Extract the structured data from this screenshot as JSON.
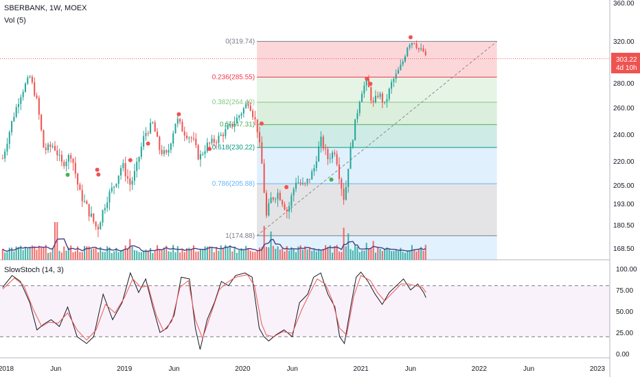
{
  "header": {
    "symbol_line": "SBERBANK, 1W, MOEX",
    "volume_label": "Vol (5)",
    "stoch_label": "SlowStoch (14, 3)"
  },
  "price_badge": {
    "price": "303.22",
    "countdown": "4d 10h"
  },
  "colors": {
    "up": "#26a69a",
    "down": "#ef5350",
    "ma": "#4a3a8a",
    "stoch_k": "#131722",
    "stoch_d": "#ef5350",
    "fib_line": "#8a8a8a"
  },
  "chart_data": [
    {
      "type": "candlestick",
      "title": "SBERBANK, 1W, MOEX",
      "price_axis_labels": [
        "360.00",
        "320.00",
        "280.00",
        "260.00",
        "240.00",
        "220.00",
        "205.00",
        "193.00",
        "180.50",
        "168.50"
      ],
      "price_axis_values": [
        360,
        320,
        280,
        260,
        240,
        220,
        205,
        193,
        180.5,
        168.5
      ],
      "time_axis_labels": [
        {
          "label": "2018",
          "t": 2018.0
        },
        {
          "label": "Jun",
          "t": 2018.42
        },
        {
          "label": "2019",
          "t": 2019.0
        },
        {
          "label": "Jun",
          "t": 2019.42
        },
        {
          "label": "2020",
          "t": 2020.0
        },
        {
          "label": "Jun",
          "t": 2020.42
        },
        {
          "label": "2021",
          "t": 2021.0
        },
        {
          "label": "Jun",
          "t": 2021.42
        },
        {
          "label": "2022",
          "t": 2022.0
        },
        {
          "label": "Jun",
          "t": 2022.42
        },
        {
          "label": "2023",
          "t": 2023.0
        }
      ],
      "price_path": [
        [
          2017.97,
          222
        ],
        [
          2018.05,
          250
        ],
        [
          2018.12,
          270
        ],
        [
          2018.2,
          286
        ],
        [
          2018.26,
          265
        ],
        [
          2018.32,
          228
        ],
        [
          2018.4,
          232
        ],
        [
          2018.47,
          218
        ],
        [
          2018.55,
          225
        ],
        [
          2018.62,
          200
        ],
        [
          2018.7,
          188
        ],
        [
          2018.77,
          178
        ],
        [
          2018.85,
          196
        ],
        [
          2018.92,
          206
        ],
        [
          2018.98,
          218
        ],
        [
          2019.05,
          205
        ],
        [
          2019.1,
          215
        ],
        [
          2019.17,
          240
        ],
        [
          2019.24,
          248
        ],
        [
          2019.3,
          228
        ],
        [
          2019.36,
          224
        ],
        [
          2019.44,
          252
        ],
        [
          2019.5,
          242
        ],
        [
          2019.58,
          236
        ],
        [
          2019.63,
          222
        ],
        [
          2019.7,
          232
        ],
        [
          2019.78,
          236
        ],
        [
          2019.85,
          242
        ],
        [
          2019.92,
          248
        ],
        [
          2020.0,
          258
        ],
        [
          2020.05,
          265
        ],
        [
          2020.12,
          246
        ],
        [
          2020.16,
          220
        ],
        [
          2020.2,
          185
        ],
        [
          2020.24,
          196
        ],
        [
          2020.3,
          200
        ],
        [
          2020.38,
          188
        ],
        [
          2020.45,
          208
        ],
        [
          2020.52,
          204
        ],
        [
          2020.6,
          214
        ],
        [
          2020.66,
          236
        ],
        [
          2020.72,
          222
        ],
        [
          2020.78,
          228
        ],
        [
          2020.82,
          210
        ],
        [
          2020.86,
          195
        ],
        [
          2020.9,
          222
        ],
        [
          2020.95,
          248
        ],
        [
          2021.0,
          272
        ],
        [
          2021.05,
          282
        ],
        [
          2021.1,
          262
        ],
        [
          2021.15,
          272
        ],
        [
          2021.2,
          262
        ],
        [
          2021.26,
          280
        ],
        [
          2021.32,
          292
        ],
        [
          2021.36,
          302
        ],
        [
          2021.4,
          318
        ],
        [
          2021.45,
          319.74
        ],
        [
          2021.49,
          312
        ],
        [
          2021.53,
          310
        ],
        [
          2021.55,
          303.22
        ]
      ],
      "markers_red": [
        [
          2020.16,
          245
        ],
        [
          2020.37,
          201
        ],
        [
          2021.05,
          280
        ],
        [
          2021.08,
          276
        ],
        [
          2021.42,
          319.74
        ],
        [
          2019.46,
          252
        ],
        [
          2019.2,
          230
        ],
        [
          2018.77,
          212
        ],
        [
          2018.78,
          209
        ],
        [
          2019.05,
          218
        ],
        [
          2019.72,
          226
        ]
      ],
      "markers_green": [
        [
          2020.75,
          211
        ],
        [
          2018.52,
          214
        ]
      ],
      "fibonacci": {
        "start": {
          "t": 2020.12,
          "price": 174.88
        },
        "end": {
          "t": 2022.15,
          "price": 319.74
        },
        "levels": [
          {
            "label": "0(319.74)",
            "price": 319.74,
            "color": "#787b86"
          },
          {
            "label": "0.236(285.55)",
            "price": 285.55,
            "color": "#f23645"
          },
          {
            "label": "0.382(264.40)",
            "price": 264.4,
            "color": "#81c784"
          },
          {
            "label": "0.5(247.31)",
            "price": 247.31,
            "color": "#4caf50"
          },
          {
            "label": "0.618(230.22)",
            "price": 230.22,
            "color": "#089981"
          },
          {
            "label": "0.786(205.88)",
            "price": 205.88,
            "color": "#64b5f6"
          },
          {
            "label": "1(174.88)",
            "price": 174.88,
            "color": "#787b86"
          }
        ],
        "zone_fills": [
          "#f2364533",
          "#81c78433",
          "#4caf5033",
          "#08998133",
          "#64b5f633",
          "#78788233",
          "#2196f322"
        ]
      }
    },
    {
      "type": "bar",
      "title": "Vol (5)",
      "note": "volume histogram with 5-period moving average",
      "spikes": [
        [
          2018.42,
          1.0
        ],
        [
          2019.05,
          0.55
        ],
        [
          2020.18,
          0.9
        ],
        [
          2020.24,
          0.75
        ],
        [
          2020.85,
          0.85
        ],
        [
          2020.9,
          0.7
        ],
        [
          2021.05,
          0.45
        ],
        [
          2021.1,
          0.5
        ]
      ]
    },
    {
      "type": "line",
      "title": "SlowStoch (14, 3)",
      "y_axis_labels": [
        "100.00",
        "75.00",
        "50.00",
        "25.00",
        "0.00"
      ],
      "y_axis_values": [
        100,
        75,
        50,
        25,
        0
      ],
      "bands": [
        80,
        20
      ],
      "series": [
        {
          "name": "%K",
          "points": [
            [
              2017.97,
              78
            ],
            [
              2018.05,
              92
            ],
            [
              2018.12,
              85
            ],
            [
              2018.2,
              60
            ],
            [
              2018.26,
              28
            ],
            [
              2018.32,
              35
            ],
            [
              2018.38,
              40
            ],
            [
              2018.45,
              32
            ],
            [
              2018.52,
              55
            ],
            [
              2018.6,
              20
            ],
            [
              2018.68,
              12
            ],
            [
              2018.74,
              20
            ],
            [
              2018.82,
              70
            ],
            [
              2018.9,
              40
            ],
            [
              2018.98,
              60
            ],
            [
              2019.05,
              95
            ],
            [
              2019.12,
              72
            ],
            [
              2019.18,
              88
            ],
            [
              2019.24,
              55
            ],
            [
              2019.3,
              25
            ],
            [
              2019.36,
              30
            ],
            [
              2019.42,
              45
            ],
            [
              2019.48,
              90
            ],
            [
              2019.55,
              88
            ],
            [
              2019.6,
              30
            ],
            [
              2019.64,
              5
            ],
            [
              2019.7,
              40
            ],
            [
              2019.76,
              60
            ],
            [
              2019.82,
              85
            ],
            [
              2019.88,
              80
            ],
            [
              2019.94,
              92
            ],
            [
              2020.02,
              95
            ],
            [
              2020.08,
              90
            ],
            [
              2020.14,
              30
            ],
            [
              2020.18,
              20
            ],
            [
              2020.22,
              15
            ],
            [
              2020.28,
              22
            ],
            [
              2020.35,
              28
            ],
            [
              2020.42,
              20
            ],
            [
              2020.48,
              60
            ],
            [
              2020.55,
              70
            ],
            [
              2020.6,
              90
            ],
            [
              2020.66,
              95
            ],
            [
              2020.72,
              70
            ],
            [
              2020.78,
              55
            ],
            [
              2020.82,
              20
            ],
            [
              2020.86,
              12
            ],
            [
              2020.92,
              60
            ],
            [
              2020.96,
              90
            ],
            [
              2021.0,
              96
            ],
            [
              2021.06,
              85
            ],
            [
              2021.12,
              70
            ],
            [
              2021.18,
              58
            ],
            [
              2021.24,
              72
            ],
            [
              2021.3,
              80
            ],
            [
              2021.36,
              88
            ],
            [
              2021.42,
              75
            ],
            [
              2021.48,
              82
            ],
            [
              2021.53,
              72
            ],
            [
              2021.55,
              66
            ]
          ]
        },
        {
          "name": "%D",
          "points": [
            [
              2017.97,
              76
            ],
            [
              2018.07,
              89
            ],
            [
              2018.15,
              80
            ],
            [
              2018.23,
              52
            ],
            [
              2018.3,
              32
            ],
            [
              2018.36,
              37
            ],
            [
              2018.44,
              36
            ],
            [
              2018.52,
              48
            ],
            [
              2018.6,
              28
            ],
            [
              2018.68,
              16
            ],
            [
              2018.76,
              28
            ],
            [
              2018.84,
              58
            ],
            [
              2018.92,
              48
            ],
            [
              2019.0,
              66
            ],
            [
              2019.07,
              88
            ],
            [
              2019.14,
              78
            ],
            [
              2019.2,
              80
            ],
            [
              2019.27,
              45
            ],
            [
              2019.33,
              27
            ],
            [
              2019.4,
              38
            ],
            [
              2019.47,
              78
            ],
            [
              2019.54,
              86
            ],
            [
              2019.6,
              40
            ],
            [
              2019.66,
              18
            ],
            [
              2019.72,
              42
            ],
            [
              2019.8,
              75
            ],
            [
              2019.86,
              83
            ],
            [
              2019.94,
              90
            ],
            [
              2020.04,
              93
            ],
            [
              2020.1,
              80
            ],
            [
              2020.16,
              35
            ],
            [
              2020.2,
              22
            ],
            [
              2020.26,
              20
            ],
            [
              2020.34,
              26
            ],
            [
              2020.42,
              24
            ],
            [
              2020.5,
              52
            ],
            [
              2020.57,
              72
            ],
            [
              2020.63,
              88
            ],
            [
              2020.7,
              82
            ],
            [
              2020.76,
              62
            ],
            [
              2020.82,
              30
            ],
            [
              2020.88,
              22
            ],
            [
              2020.94,
              68
            ],
            [
              2021.0,
              92
            ],
            [
              2021.08,
              86
            ],
            [
              2021.14,
              72
            ],
            [
              2021.2,
              62
            ],
            [
              2021.27,
              72
            ],
            [
              2021.34,
              82
            ],
            [
              2021.4,
              82
            ],
            [
              2021.46,
              80
            ],
            [
              2021.52,
              78
            ],
            [
              2021.55,
              72
            ]
          ]
        }
      ]
    }
  ]
}
